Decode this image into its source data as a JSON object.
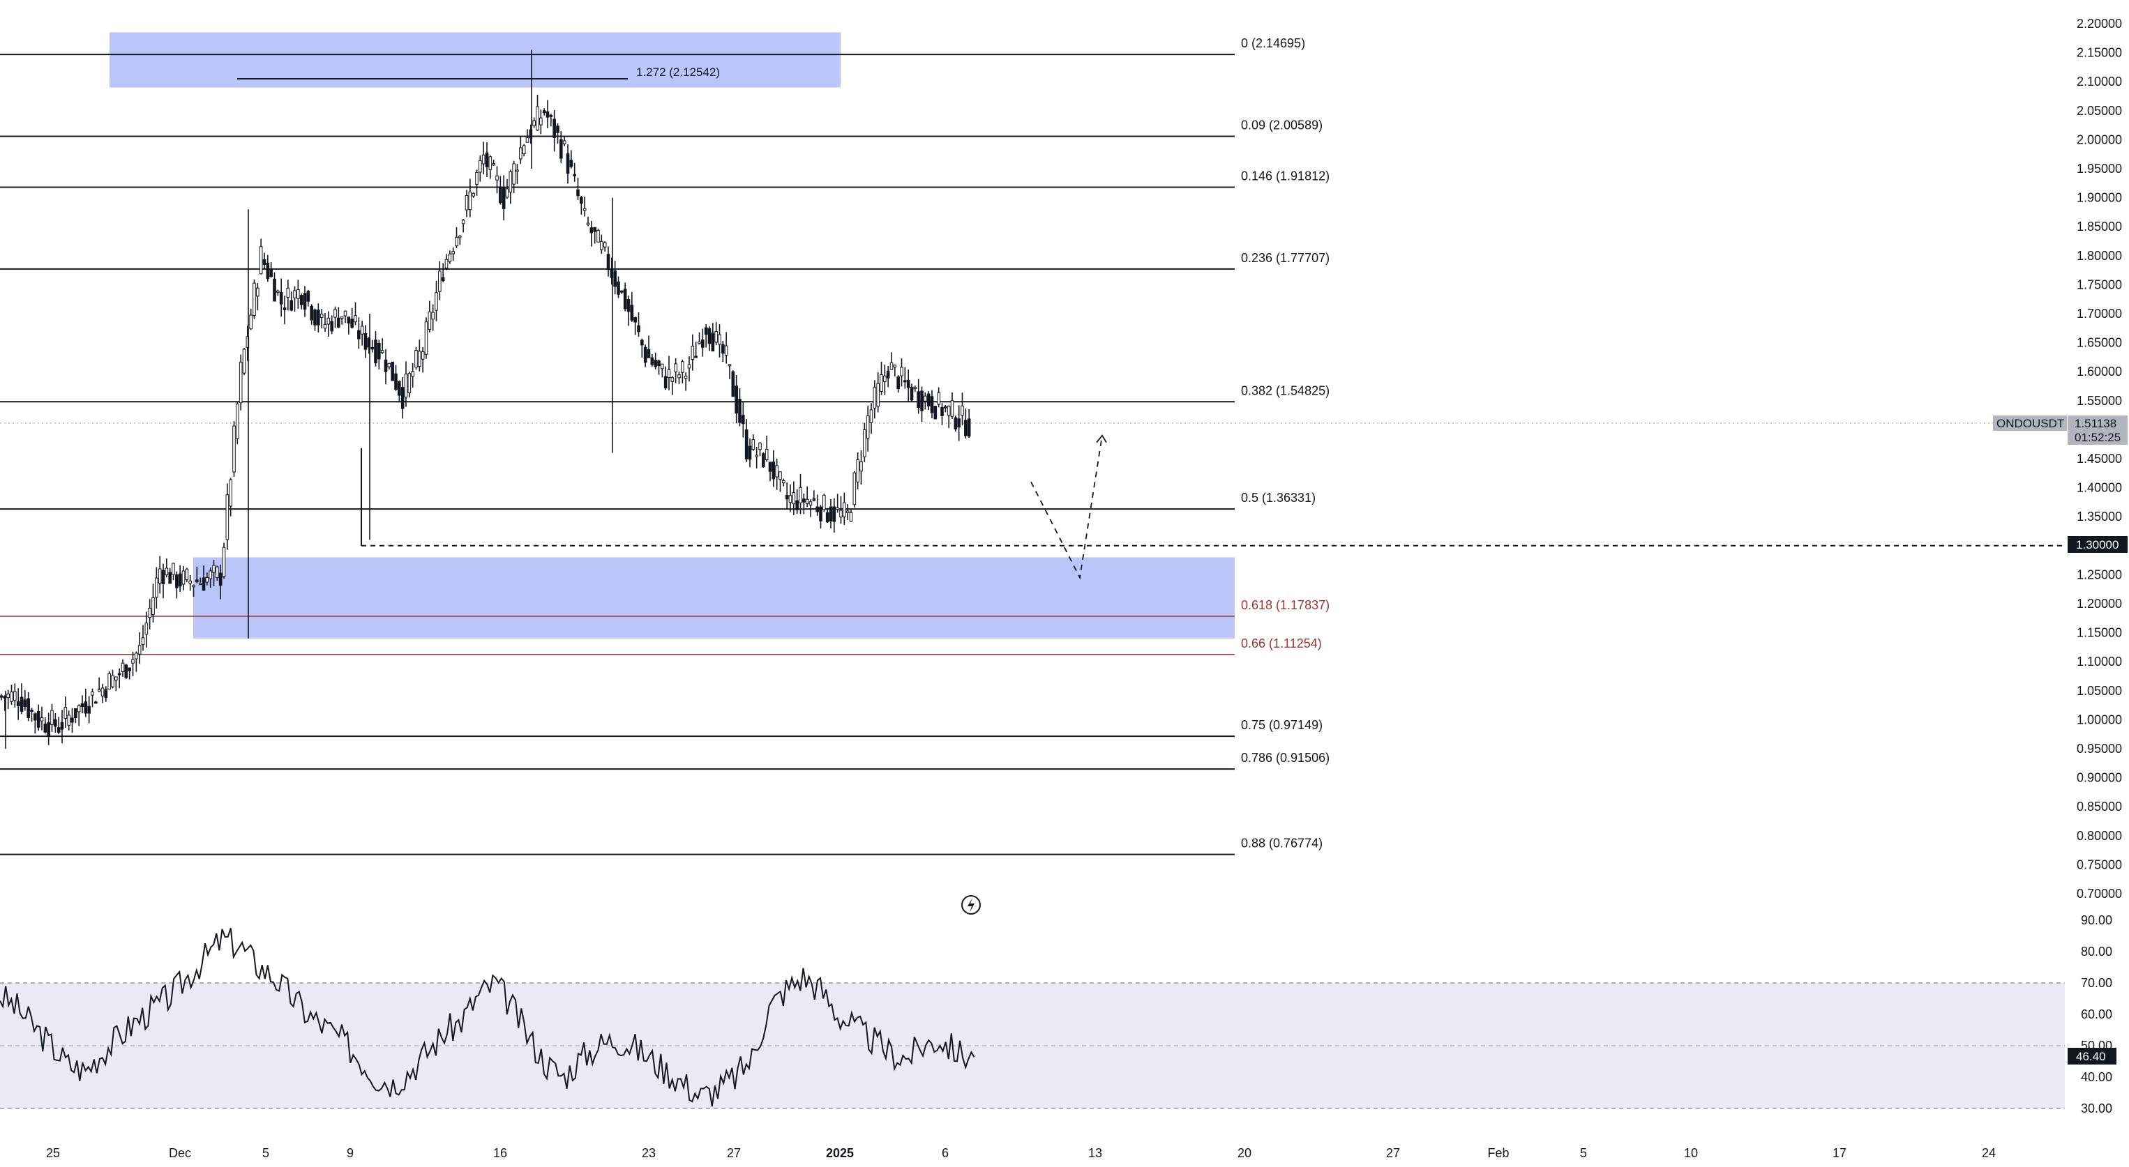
{
  "symbol": {
    "name": "ONDOUSDT",
    "price": "1.51138",
    "countdown": "01:52:25"
  },
  "colors": {
    "candle": "#131722",
    "zone": "#aebcf9",
    "rsi_band": "#ece9f7",
    "fib_red": "#a0362f",
    "price_tag": "#b2b5be",
    "marker_tag": "#131722"
  },
  "chart_data": [
    {
      "type": "line",
      "title": "",
      "series": [
        {
          "name": "ONDOUSDT",
          "style": "candlestick"
        }
      ],
      "x_ticks": [
        "25",
        "Dec",
        "5",
        "9",
        "16",
        "23",
        "27",
        "2025",
        "6",
        "13",
        "20",
        "27",
        "Feb",
        "5",
        "10",
        "17",
        "24"
      ],
      "y_ticks": [
        "2.20000",
        "2.15000",
        "2.10000",
        "2.05000",
        "2.00000",
        "1.95000",
        "1.90000",
        "1.85000",
        "1.80000",
        "1.75000",
        "1.70000",
        "1.65000",
        "1.60000",
        "1.55000",
        "1.50000",
        "1.45000",
        "1.40000",
        "1.35000",
        "1.30000",
        "1.25000",
        "1.20000",
        "1.15000",
        "1.10000",
        "1.05000",
        "1.00000",
        "0.95000",
        "0.90000",
        "0.85000",
        "0.80000",
        "0.75000",
        "0.70000"
      ],
      "ylim": [
        0.68,
        2.21
      ],
      "x": [
        "Nov 21",
        "Nov 22",
        "Nov 23",
        "Nov 24",
        "Nov 25",
        "Nov 26",
        "Nov 27",
        "Nov 28",
        "Nov 29",
        "Nov 30",
        "Dec 1",
        "Dec 2",
        "Dec 3",
        "Dec 4",
        "Dec 5",
        "Dec 6",
        "Dec 7",
        "Dec 8",
        "Dec 9",
        "Dec 10",
        "Dec 11",
        "Dec 12",
        "Dec 13",
        "Dec 14",
        "Dec 15",
        "Dec 16",
        "Dec 17",
        "Dec 18",
        "Dec 19",
        "Dec 20",
        "Dec 21",
        "Dec 22",
        "Dec 23",
        "Dec 24",
        "Dec 25",
        "Dec 26",
        "Dec 27",
        "Dec 28",
        "Dec 29",
        "Dec 30",
        "Dec 31",
        "Jan 1",
        "Jan 2",
        "Jan 3",
        "Jan 4",
        "Jan 5",
        "Jan 6",
        "Jan 7"
      ],
      "close": [
        1.04,
        1.0,
        0.99,
        1.02,
        1.05,
        1.08,
        1.12,
        1.26,
        1.24,
        1.24,
        1.25,
        1.6,
        1.8,
        1.72,
        1.74,
        1.68,
        1.7,
        1.66,
        1.63,
        1.56,
        1.64,
        1.78,
        1.87,
        1.97,
        1.9,
        2.0,
        2.05,
        1.98,
        1.86,
        1.8,
        1.72,
        1.63,
        1.59,
        1.6,
        1.68,
        1.62,
        1.47,
        1.45,
        1.38,
        1.38,
        1.36,
        1.35,
        1.52,
        1.61,
        1.57,
        1.55,
        1.53,
        1.51
      ],
      "fib_levels": [
        {
          "label": "0 (2.14695)",
          "value": 2.14695
        },
        {
          "label": "0.09 (2.00589)",
          "value": 2.00589
        },
        {
          "label": "0.146 (1.91812)",
          "value": 1.91812
        },
        {
          "label": "0.236 (1.77707)",
          "value": 1.77707
        },
        {
          "label": "0.382 (1.54825)",
          "value": 1.54825
        },
        {
          "label": "0.5 (1.36331)",
          "value": 1.36331
        },
        {
          "label": "0.618 (1.17837)",
          "value": 1.17837,
          "color": "red"
        },
        {
          "label": "0.66 (1.11254)",
          "value": 1.11254,
          "color": "red"
        },
        {
          "label": "0.75 (0.97149)",
          "value": 0.97149
        },
        {
          "label": "0.786 (0.91506)",
          "value": 0.91506
        },
        {
          "label": "0.88 (0.76774)",
          "value": 0.76774
        }
      ],
      "extension": {
        "label": "1.272 (2.12542)",
        "value": 2.12542
      },
      "support_level": {
        "label": "1.30000",
        "value": 1.3
      },
      "zones": [
        {
          "name": "supply",
          "from": 2.09,
          "to": 2.185
        },
        {
          "name": "demand",
          "from": 1.14,
          "to": 1.28
        }
      ],
      "projection": [
        1.41,
        1.245,
        1.49
      ]
    },
    {
      "type": "line",
      "title": "",
      "series": [
        {
          "name": "RSI",
          "values": [
            66,
            62,
            56,
            50,
            44,
            42,
            48,
            53,
            58,
            62,
            66,
            72,
            78,
            84,
            82,
            76,
            72,
            66,
            60,
            56,
            52,
            46,
            40,
            38,
            42,
            48,
            54,
            58,
            66,
            70,
            62,
            52,
            44,
            40,
            46,
            50,
            52,
            50,
            46,
            42,
            38,
            34,
            36,
            40,
            46,
            62,
            68,
            72,
            68,
            60,
            56,
            52,
            48,
            46,
            50,
            52,
            48,
            46
          ]
        }
      ],
      "y_ticks": [
        "90.00",
        "80.00",
        "70.00",
        "60.00",
        "50.00",
        "40.00",
        "30.00"
      ],
      "ylim": [
        28,
        92
      ],
      "band": [
        30,
        70
      ],
      "midline": 50,
      "last_value": "46.40"
    }
  ]
}
